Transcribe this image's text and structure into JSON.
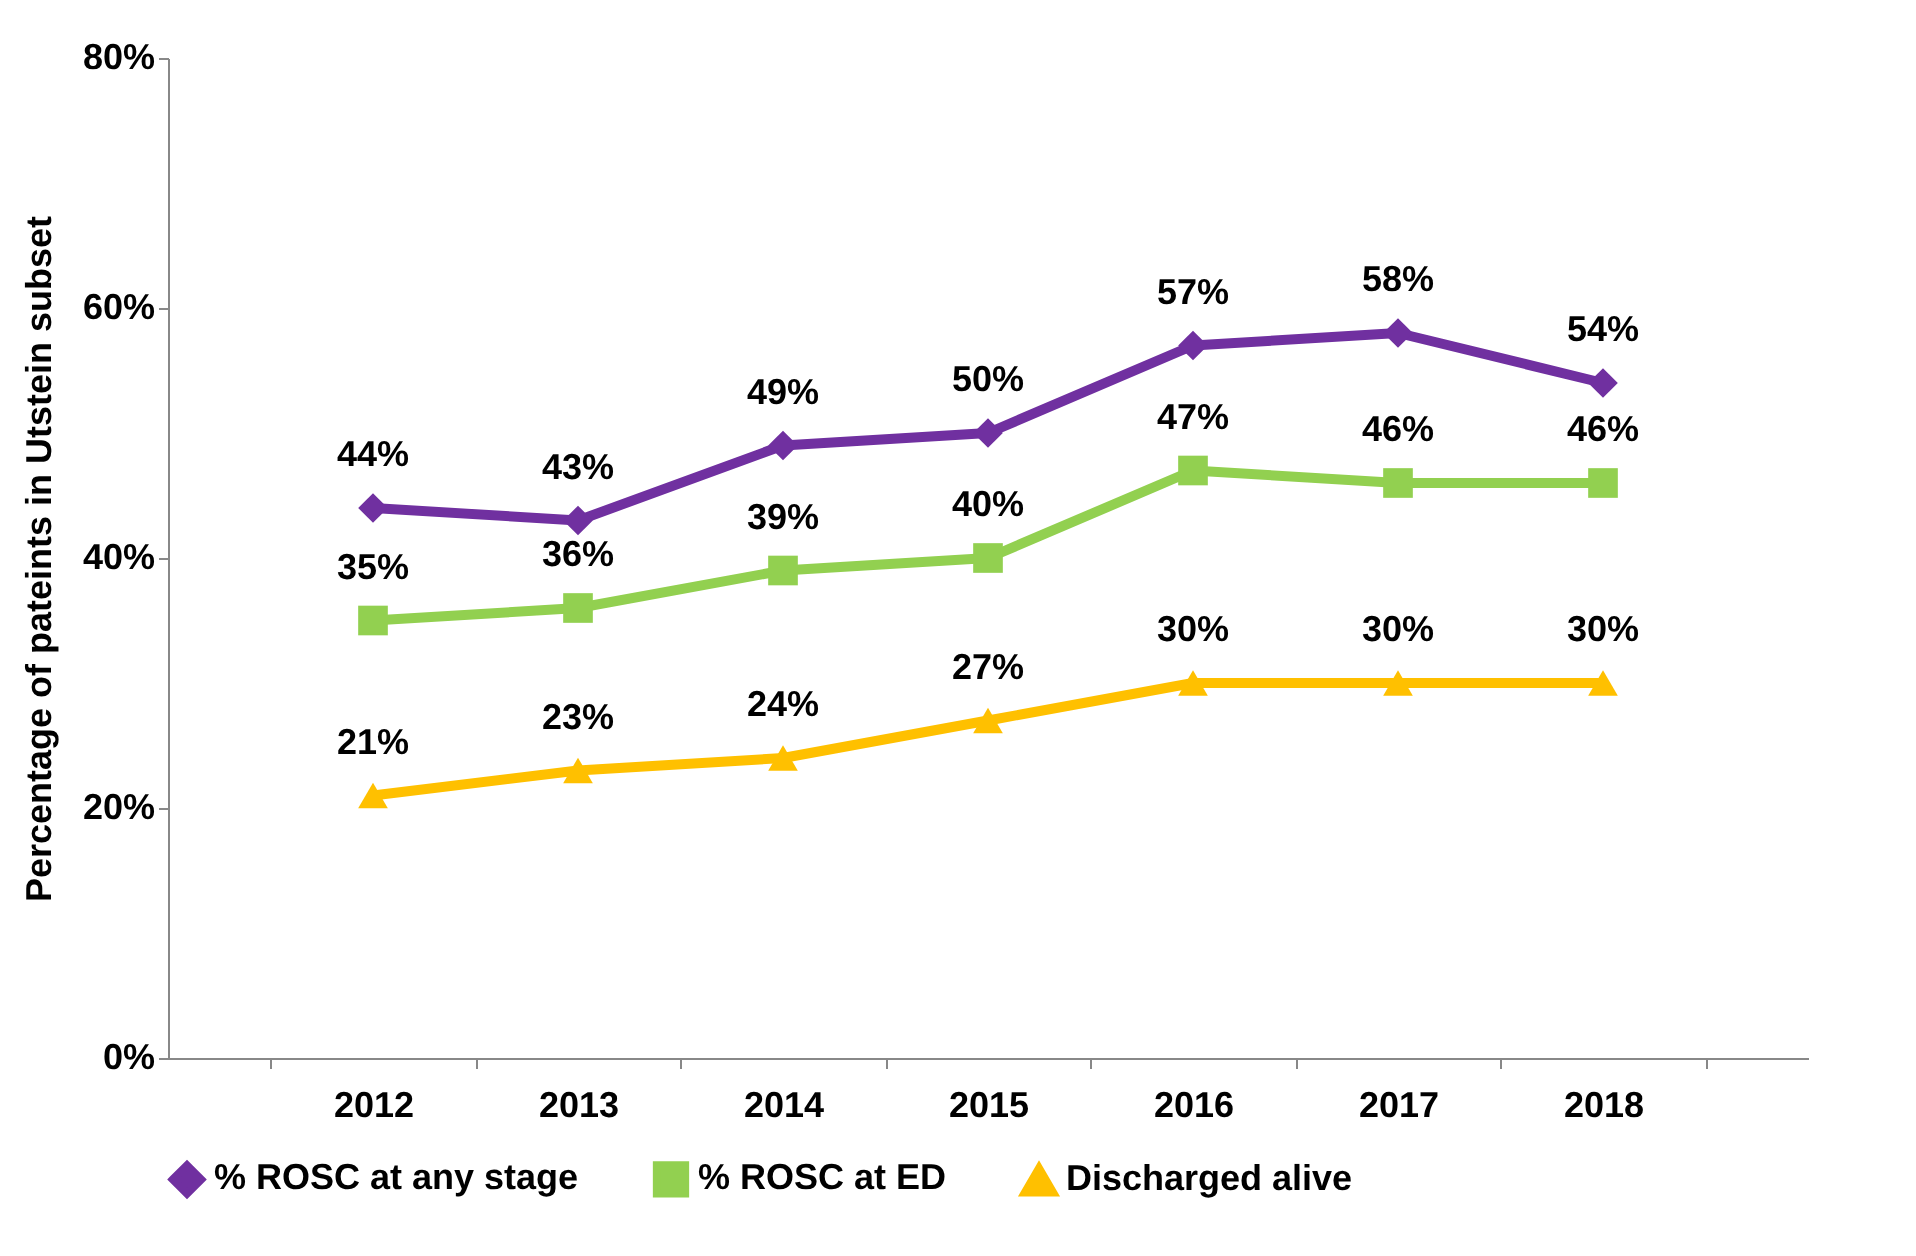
{
  "chart_data": {
    "type": "line",
    "ylabel": "Percentage of pateints in Utstein subset",
    "categories": [
      "2012",
      "2013",
      "2014",
      "2015",
      "2016",
      "2017",
      "2018"
    ],
    "ylim": [
      0,
      80
    ],
    "yticks": [
      {
        "value": 0,
        "label": "0%"
      },
      {
        "value": 20,
        "label": "20%"
      },
      {
        "value": 40,
        "label": "40%"
      },
      {
        "value": 60,
        "label": "60%"
      },
      {
        "value": 80,
        "label": "80%"
      }
    ],
    "grid": false,
    "legend": "bottom",
    "line_style": "solid",
    "series": [
      {
        "name": "% ROSC at any stage",
        "color": "#7030a0",
        "marker": "diamond",
        "values": [
          44,
          43,
          49,
          50,
          57,
          58,
          54
        ],
        "value_labels": [
          "44%",
          "43%",
          "49%",
          "50%",
          "57%",
          "58%",
          "54%"
        ]
      },
      {
        "name": "% ROSC at ED",
        "color": "#92d050",
        "marker": "square",
        "values": [
          35,
          36,
          39,
          40,
          47,
          46,
          46
        ],
        "value_labels": [
          "35%",
          "36%",
          "39%",
          "40%",
          "47%",
          "46%",
          "46%"
        ]
      },
      {
        "name": "Discharged alive",
        "color": "#ffc000",
        "marker": "triangle",
        "values": [
          21,
          23,
          24,
          27,
          30,
          30,
          30
        ],
        "value_labels": [
          "21%",
          "23%",
          "24%",
          "27%",
          "30%",
          "30%",
          "30%"
        ]
      }
    ]
  }
}
